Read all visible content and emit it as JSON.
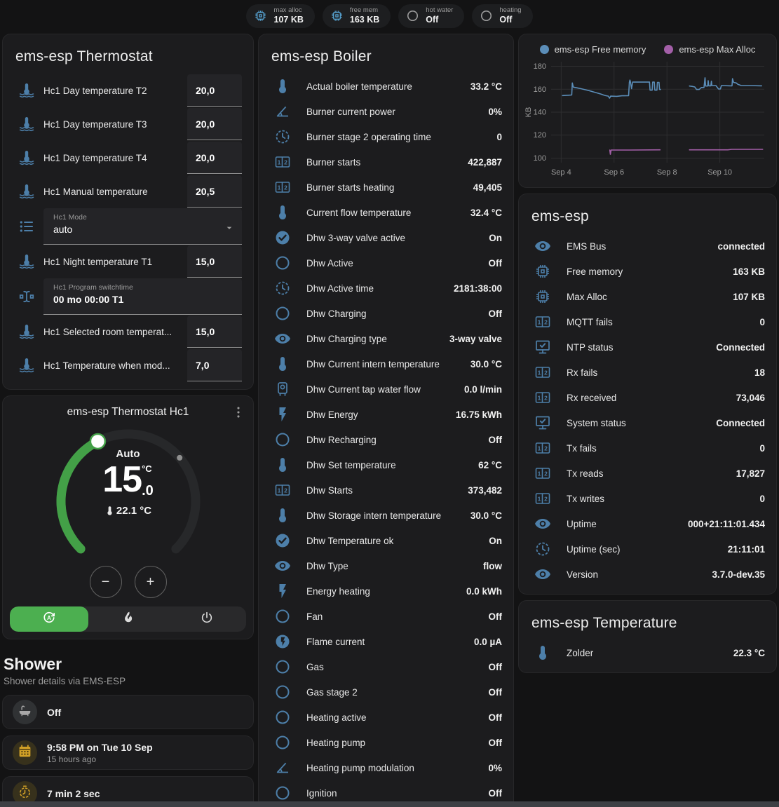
{
  "colors": {
    "icon_blue": "#4d7fa9",
    "bright_blue": "#58a6d6",
    "amber": "#d2a127",
    "green": "#4caf50",
    "line_blue": "#5b8db8",
    "line_purple": "#a35fa8"
  },
  "topbar": {
    "pills": [
      {
        "name": "max-alloc",
        "label": "max alloc",
        "value": "107 KB",
        "icon": "chip",
        "icon_color": "#58a6d6"
      },
      {
        "name": "free-mem",
        "label": "free mem",
        "value": "163 KB",
        "icon": "chip",
        "icon_color": "#58a6d6"
      },
      {
        "name": "hot-water",
        "label": "hot water",
        "value": "Off",
        "icon": "circle",
        "icon_color": "#9c9c9c"
      },
      {
        "name": "heating",
        "label": "heating",
        "value": "Off",
        "icon": "circle",
        "icon_color": "#9c9c9c"
      }
    ]
  },
  "thermostat_card": {
    "title": "ems-esp Thermostat",
    "rows": [
      {
        "icon": "thermometer-water",
        "label": "Hc1 Day temperature T2",
        "control": "number",
        "value": "20,0"
      },
      {
        "icon": "thermometer-water",
        "label": "Hc1 Day temperature T3",
        "control": "number",
        "value": "20,0"
      },
      {
        "icon": "thermometer-water",
        "label": "Hc1 Day temperature T4",
        "control": "number",
        "value": "20,0"
      },
      {
        "icon": "thermometer-water",
        "label": "Hc1 Manual temperature",
        "control": "number",
        "value": "20,5"
      },
      {
        "icon": "list",
        "label": "Hc1 Mode",
        "control": "select",
        "field_label": "Hc1 Mode",
        "value": "auto"
      },
      {
        "icon": "thermometer-water",
        "label": "Hc1 Night temperature T1",
        "control": "number",
        "value": "15,0"
      },
      {
        "icon": "cursor-text",
        "label": "Hc1 Program switchtime",
        "control": "text",
        "field_label": "Hc1 Program switchtime",
        "value": "00 mo 00:00 T1"
      },
      {
        "icon": "thermometer-water",
        "label": "Hc1 Selected room temperat...",
        "control": "number",
        "value": "15,0"
      },
      {
        "icon": "thermometer-water",
        "label": "Hc1 Temperature when mod...",
        "control": "number",
        "value": "7,0"
      }
    ]
  },
  "dial_card": {
    "title": "ems-esp Thermostat Hc1",
    "mode_label": "Auto",
    "target_whole": "15",
    "target_fraction": ".0",
    "unit": "°C",
    "current_temp": "22.1 °C",
    "min": 5,
    "max": 30,
    "target": 15,
    "current": 22.1,
    "minus_label": "−",
    "plus_label": "+",
    "modes": [
      {
        "name": "auto",
        "icon": "auto-mode",
        "active": true
      },
      {
        "name": "heat",
        "icon": "fire",
        "active": false
      },
      {
        "name": "off",
        "icon": "power",
        "active": false
      }
    ]
  },
  "shower": {
    "heading": "Shower",
    "subheading": "Shower details via EMS-ESP",
    "cards": [
      {
        "icon": "bathtub",
        "icon_color": "#a8a8a8",
        "icon_bg": "#303234",
        "primary": "Off",
        "secondary": ""
      },
      {
        "icon": "calendar",
        "icon_color": "#d2a127",
        "icon_bg": "#37311c",
        "primary": "9:58 PM on Tue 10 Sep",
        "secondary": "15 hours ago"
      },
      {
        "icon": "timer",
        "icon_color": "#d2a127",
        "icon_bg": "#37311c",
        "primary": "7 min 2 sec",
        "secondary": ""
      }
    ],
    "partial_card_icon": "snowflake-alert"
  },
  "boiler_card": {
    "title": "ems-esp Boiler",
    "rows": [
      {
        "icon": "thermometer",
        "label": "Actual boiler temperature",
        "value": "33.2 °C"
      },
      {
        "icon": "angle",
        "label": "Burner current power",
        "value": "0%"
      },
      {
        "icon": "clock",
        "label": "Burner stage 2 operating time",
        "value": "0"
      },
      {
        "icon": "counter",
        "label": "Burner starts",
        "value": "422,887"
      },
      {
        "icon": "counter",
        "label": "Burner starts heating",
        "value": "49,405"
      },
      {
        "icon": "thermometer",
        "label": "Current flow temperature",
        "value": "32.4 °C"
      },
      {
        "icon": "check-circle",
        "label": "Dhw 3-way valve active",
        "value": "On"
      },
      {
        "icon": "circle",
        "label": "Dhw Active",
        "value": "Off"
      },
      {
        "icon": "clock",
        "label": "Dhw Active time",
        "value": "2181:38:00"
      },
      {
        "icon": "circle",
        "label": "Dhw Charging",
        "value": "Off"
      },
      {
        "icon": "eye",
        "label": "Dhw Charging type",
        "value": "3-way valve"
      },
      {
        "icon": "thermometer",
        "label": "Dhw Current intern temperature",
        "value": "30.0 °C"
      },
      {
        "icon": "water-boiler",
        "label": "Dhw Current tap water flow",
        "value": "0.0 l/min"
      },
      {
        "icon": "flash",
        "label": "Dhw Energy",
        "value": "16.75 kWh"
      },
      {
        "icon": "circle",
        "label": "Dhw Recharging",
        "value": "Off"
      },
      {
        "icon": "thermometer",
        "label": "Dhw Set temperature",
        "value": "62 °C"
      },
      {
        "icon": "counter",
        "label": "Dhw Starts",
        "value": "373,482"
      },
      {
        "icon": "thermometer",
        "label": "Dhw Storage intern temperature",
        "value": "30.0 °C"
      },
      {
        "icon": "check-circle",
        "label": "Dhw Temperature ok",
        "value": "On"
      },
      {
        "icon": "eye",
        "label": "Dhw Type",
        "value": "flow"
      },
      {
        "icon": "flash",
        "label": "Energy heating",
        "value": "0.0 kWh"
      },
      {
        "icon": "circle",
        "label": "Fan",
        "value": "Off"
      },
      {
        "icon": "flash-circle",
        "label": "Flame current",
        "value": "0.0 µA"
      },
      {
        "icon": "circle",
        "label": "Gas",
        "value": "Off"
      },
      {
        "icon": "circle",
        "label": "Gas stage 2",
        "value": "Off"
      },
      {
        "icon": "circle",
        "label": "Heating active",
        "value": "Off"
      },
      {
        "icon": "circle",
        "label": "Heating pump",
        "value": "Off"
      },
      {
        "icon": "angle",
        "label": "Heating pump modulation",
        "value": "0%"
      },
      {
        "icon": "circle",
        "label": "Ignition",
        "value": "Off"
      }
    ]
  },
  "emsesp_card": {
    "title": "ems-esp",
    "rows": [
      {
        "icon": "eye",
        "label": "EMS Bus",
        "value": "connected"
      },
      {
        "icon": "chip",
        "label": "Free memory",
        "value": "163 KB"
      },
      {
        "icon": "chip",
        "label": "Max Alloc",
        "value": "107 KB"
      },
      {
        "icon": "counter",
        "label": "MQTT fails",
        "value": "0"
      },
      {
        "icon": "monitor-check",
        "label": "NTP status",
        "value": "Connected"
      },
      {
        "icon": "counter",
        "label": "Rx fails",
        "value": "18"
      },
      {
        "icon": "counter",
        "label": "Rx received",
        "value": "73,046"
      },
      {
        "icon": "monitor-check",
        "label": "System status",
        "value": "Connected"
      },
      {
        "icon": "counter",
        "label": "Tx fails",
        "value": "0"
      },
      {
        "icon": "counter",
        "label": "Tx reads",
        "value": "17,827"
      },
      {
        "icon": "counter",
        "label": "Tx writes",
        "value": "0"
      },
      {
        "icon": "eye",
        "label": "Uptime",
        "value": "000+21:11:01.434"
      },
      {
        "icon": "clock",
        "label": "Uptime (sec)",
        "value": "21:11:01"
      },
      {
        "icon": "eye",
        "label": "Version",
        "value": "3.7.0-dev.35"
      }
    ]
  },
  "temperature_card": {
    "title": "ems-esp Temperature",
    "rows": [
      {
        "icon": "thermometer",
        "label": "Zolder",
        "value": "22.3 °C"
      }
    ]
  },
  "chart_data": {
    "type": "line",
    "title": "",
    "xlabel": "",
    "ylabel": "KB",
    "legend_position": "top",
    "grid": true,
    "ylim": [
      96,
      184
    ],
    "xlim": [
      3.62,
      11.68
    ],
    "yticks": [
      100,
      120,
      140,
      160,
      180
    ],
    "xticks": [
      {
        "x": 4,
        "label": "Sep 4"
      },
      {
        "x": 6,
        "label": "Sep 6"
      },
      {
        "x": 8,
        "label": "Sep 8"
      },
      {
        "x": 10,
        "label": "Sep 10"
      }
    ],
    "series": [
      {
        "name": "ems-esp Free memory",
        "color": "#5b8db8",
        "segments": [
          [
            [
              4.05,
              154.5
            ],
            [
              4.28,
              154.8
            ],
            [
              4.4,
              155.0
            ],
            [
              4.42,
              165.5
            ],
            [
              4.46,
              161.8
            ],
            [
              4.6,
              161.2
            ],
            [
              4.75,
              160.5
            ],
            [
              4.9,
              159.6
            ],
            [
              5.05,
              158.8
            ],
            [
              5.2,
              157.8
            ],
            [
              5.35,
              156.8
            ],
            [
              5.5,
              155.8
            ],
            [
              5.6,
              155.0
            ],
            [
              5.68,
              154.4
            ],
            [
              5.78,
              154.0
            ],
            [
              5.83,
              152.2
            ],
            [
              5.87,
              154.0
            ],
            [
              6.1,
              153.8
            ],
            [
              6.3,
              154.3
            ],
            [
              6.55,
              154.4
            ],
            [
              6.58,
              166.0
            ],
            [
              6.6,
              168.0
            ],
            [
              6.62,
              166.2
            ],
            [
              6.66,
              160.5
            ],
            [
              6.7,
              166.2
            ],
            [
              7.1,
              166.2
            ],
            [
              7.34,
              166.2
            ],
            [
              7.36,
              159.2
            ],
            [
              7.44,
              159.2
            ],
            [
              7.46,
              166.2
            ],
            [
              7.52,
              166.2
            ],
            [
              7.54,
              159.2
            ],
            [
              7.62,
              159.2
            ],
            [
              7.64,
              166.0
            ],
            [
              7.7,
              166.0
            ],
            [
              7.72,
              159.8
            ],
            [
              7.76,
              159.8
            ]
          ],
          [
            [
              8.85,
              162.8
            ],
            [
              8.95,
              162.5
            ],
            [
              9.05,
              162.0
            ],
            [
              9.12,
              159.8
            ],
            [
              9.22,
              159.8
            ],
            [
              9.3,
              161.5
            ],
            [
              9.4,
              161.5
            ],
            [
              9.44,
              170.0
            ],
            [
              9.46,
              162.8
            ],
            [
              9.54,
              162.8
            ],
            [
              9.56,
              167.5
            ],
            [
              9.58,
              163.0
            ],
            [
              9.66,
              163.0
            ],
            [
              9.68,
              167.0
            ],
            [
              9.7,
              163.2
            ],
            [
              9.85,
              163.2
            ],
            [
              9.95,
              160.2
            ],
            [
              10.02,
              160.2
            ],
            [
              10.06,
              163.2
            ],
            [
              10.4,
              163.0
            ],
            [
              10.46,
              163.0
            ],
            [
              10.48,
              169.2
            ],
            [
              10.52,
              166.0
            ],
            [
              10.62,
              165.5
            ],
            [
              10.68,
              164.3
            ],
            [
              10.8,
              163.3
            ],
            [
              11.1,
              163.2
            ],
            [
              11.58,
              163.0
            ]
          ]
        ]
      },
      {
        "name": "ems-esp Max Alloc",
        "color": "#a35fa8",
        "segments": [
          [
            [
              5.84,
              107.0
            ],
            [
              5.86,
              103.3
            ],
            [
              5.89,
              107.0
            ],
            [
              6.6,
              107.0
            ],
            [
              7.74,
              107.2
            ]
          ],
          [
            [
              8.85,
              107.2
            ],
            [
              10.3,
              107.2
            ],
            [
              10.45,
              107.6
            ],
            [
              11.62,
              107.6
            ]
          ]
        ]
      }
    ]
  }
}
